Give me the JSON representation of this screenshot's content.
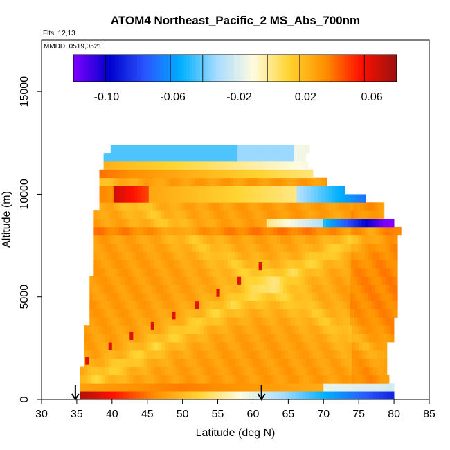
{
  "chart_data": {
    "type": "heatmap",
    "title": "ATOM4 Northeast_Pacific_2 MS_Abs_700nm",
    "flights_label": "Flts: 12,13",
    "date_label": "MMDD: 0519,0521",
    "xlabel": "Latitude (deg N)",
    "ylabel": "Altitude (m)",
    "xlim": [
      30,
      85
    ],
    "ylim": [
      0,
      17500
    ],
    "x_ticks": [
      "30",
      "35",
      "40",
      "45",
      "50",
      "55",
      "60",
      "65",
      "70",
      "75",
      "80",
      "85"
    ],
    "y_ticks": [
      "0",
      "5000",
      "10000",
      "15000"
    ],
    "colorbar": {
      "range": [
        -0.12,
        0.075
      ],
      "tick_values": [
        -0.1,
        -0.06,
        -0.02,
        0.02,
        0.06
      ],
      "tick_labels": [
        "-0.10",
        "-0.06",
        "-0.02",
        "0.02",
        "0.06"
      ],
      "palette": [
        "#7f00ff",
        "#0000cc",
        "#2a55ff",
        "#00b0ff",
        "#a8dcff",
        "#fffbe0",
        "#ffd430",
        "#ff9000",
        "#ff1000",
        "#9a1010"
      ]
    },
    "arrows_latitude": [
      34.8,
      61.2
    ],
    "data_extent": {
      "lat_min": 35.5,
      "lat_max": 80.5,
      "alt_min": 0,
      "alt_max": 12400
    },
    "notable_features": [
      {
        "label": "surface high absorption",
        "lat": [
          35.5,
          58
        ],
        "alt": [
          0,
          450
        ],
        "value": 0.07
      },
      {
        "label": "surface low absorption",
        "lat": [
          65,
          80
        ],
        "alt": [
          0,
          450
        ],
        "value": -0.09
      },
      {
        "label": "upper tropospheric band",
        "lat": [
          40,
          45
        ],
        "alt": [
          9800,
          10500
        ],
        "value": 0.06
      },
      {
        "label": "upper negative band",
        "lat": [
          70,
          78
        ],
        "alt": [
          8300,
          9000
        ],
        "value": -0.1
      },
      {
        "label": "top blue band",
        "lat": [
          40,
          68
        ],
        "alt": [
          11800,
          12400
        ],
        "value": -0.05
      }
    ]
  }
}
